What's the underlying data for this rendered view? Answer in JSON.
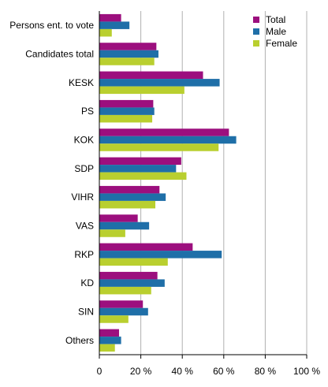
{
  "chart_data": {
    "type": "bar",
    "orientation": "horizontal",
    "categories": [
      "Persons ent. to vote",
      "Candidates total",
      "KESK",
      "PS",
      "KOK",
      "SDP",
      "VIHR",
      "VAS",
      "RKP",
      "KD",
      "SIN",
      "Others"
    ],
    "series": [
      {
        "name": "Total",
        "color": "#9c0f7e",
        "values": [
          10.5,
          27.5,
          50,
          26,
          62.5,
          39.5,
          29,
          18.5,
          45,
          28,
          21,
          9.5
        ]
      },
      {
        "name": "Male",
        "color": "#1f6fa8",
        "values": [
          14.5,
          28.5,
          58,
          26.5,
          66,
          37,
          32,
          24,
          59,
          31.5,
          23.5,
          10.5
        ]
      },
      {
        "name": "Female",
        "color": "#b9cf2f",
        "values": [
          6,
          26.5,
          41,
          25.5,
          57.5,
          42,
          27,
          12.5,
          33,
          25,
          14,
          7.5
        ]
      }
    ],
    "xlim": [
      0,
      100
    ],
    "xticks": [
      "0",
      "20 %",
      "40 %",
      "60 %",
      "80 %",
      "100 %"
    ],
    "grid": "vertical",
    "legend": "top-right"
  }
}
